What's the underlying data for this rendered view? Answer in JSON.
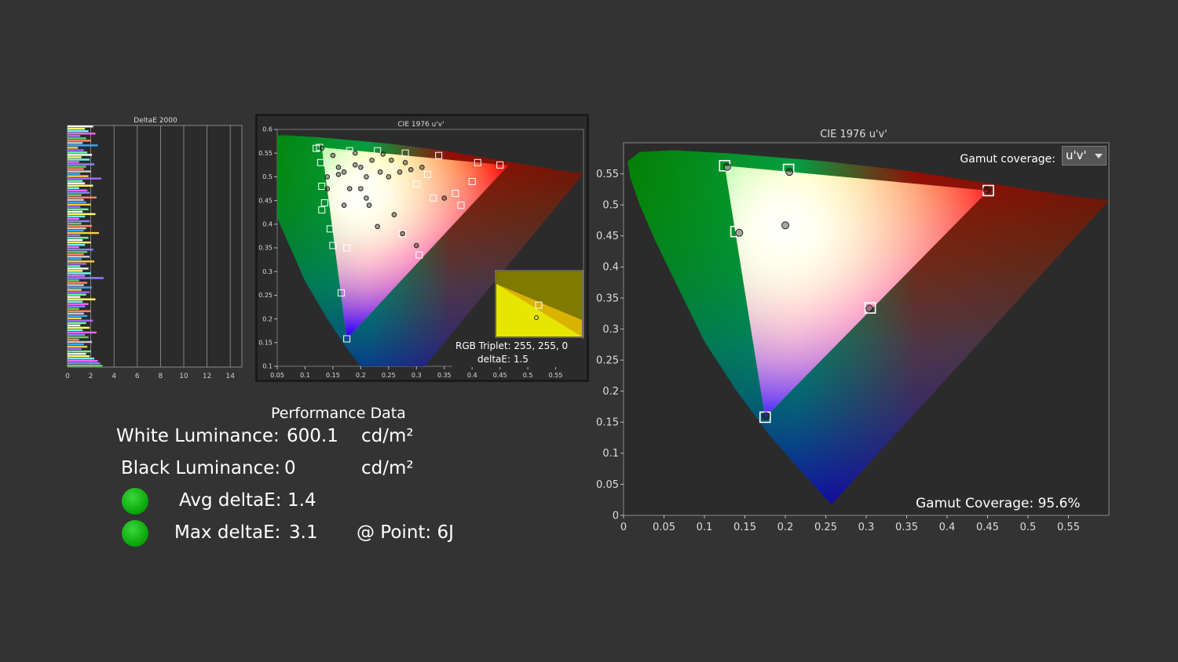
{
  "performance": {
    "title": "Performance Data",
    "white_label": "White Luminance:",
    "white_value": "600.1",
    "white_unit": "cd/m²",
    "black_label": "Black Luminance:",
    "black_value": "0",
    "black_unit": "cd/m²",
    "avg_label": "Avg deltaE:",
    "avg_value": "1.4",
    "max_label": "Max deltaE:",
    "max_value": "3.1",
    "point_label": "@ Point: 6J",
    "status_color": "#1fc21f"
  },
  "colors": {
    "background": "#333333",
    "plot_background": "#2b2b2b"
  },
  "chart_data": [
    {
      "type": "bar",
      "title": "DeltaE 2000",
      "orientation": "horizontal",
      "xlim": [
        0,
        15
      ],
      "x_ticks": [
        "0",
        "2",
        "4",
        "6",
        "8",
        "10",
        "12",
        "14"
      ],
      "values": [
        2.2,
        1.5,
        1.8,
        2.4,
        1.1,
        1.6,
        2.0,
        1.3,
        2.6,
        0.9,
        1.4,
        1.7,
        2.1,
        1.2,
        1.9,
        1.0,
        2.3,
        1.6,
        1.4,
        2.0,
        1.1,
        1.8,
        2.9,
        1.3,
        1.5,
        2.2,
        1.0,
        1.7,
        1.9,
        1.2,
        2.5,
        1.4,
        1.6,
        2.0,
        1.1,
        1.8,
        1.3,
        2.4,
        1.5,
        1.0,
        1.9,
        1.2,
        2.1,
        1.6,
        1.4,
        2.7,
        1.1,
        1.8,
        1.3,
        2.0,
        1.5,
        1.0,
        2.2,
        1.7,
        1.4,
        1.9,
        1.2,
        2.3,
        1.6,
        1.1,
        1.8,
        1.3,
        2.0,
        1.5,
        3.1,
        1.0,
        1.7,
        1.4,
        2.1,
        1.2,
        1.9,
        1.6,
        1.1,
        2.4,
        1.3,
        1.8,
        1.5,
        1.0,
        2.0,
        1.4,
        1.7,
        1.2,
        2.2,
        1.6,
        1.1,
        1.9,
        1.3,
        2.5,
        1.5,
        1.8,
        1.0,
        2.1,
        1.4,
        1.7,
        1.2,
        2.0,
        1.6,
        1.9,
        2.3,
        2.6,
        2.8,
        3.0
      ],
      "colors": [
        "#ffffff",
        "#ffff66",
        "#66ffff",
        "#ff66ff",
        "#8888ff",
        "#66cc66",
        "#ff8866",
        "#cccccc",
        "#33aaff",
        "#ffcc44",
        "#aa66ff",
        "#66ffaa"
      ]
    },
    {
      "type": "scatter",
      "title": "CIE 1976 u'v'",
      "xlim": [
        0.05,
        0.6
      ],
      "ylim": [
        0.1,
        0.6
      ],
      "x_ticks": [
        "0.05",
        "0.1",
        "0.15",
        "0.2",
        "0.25",
        "0.3",
        "0.35",
        "0.4",
        "0.45",
        "0.5",
        "0.55"
      ],
      "y_ticks": [
        "0.1",
        "0.15",
        "0.2",
        "0.25",
        "0.3",
        "0.35",
        "0.4",
        "0.45",
        "0.5",
        "0.55",
        "0.6"
      ],
      "gamut": [
        [
          0.13,
          0.562
        ],
        [
          0.465,
          0.524
        ],
        [
          0.175,
          0.158
        ]
      ],
      "targets": [
        [
          0.126,
          0.562
        ],
        [
          0.18,
          0.555
        ],
        [
          0.23,
          0.555
        ],
        [
          0.28,
          0.55
        ],
        [
          0.34,
          0.545
        ],
        [
          0.41,
          0.53
        ],
        [
          0.45,
          0.525
        ],
        [
          0.128,
          0.53
        ],
        [
          0.15,
          0.505
        ],
        [
          0.2,
          0.51
        ],
        [
          0.26,
          0.52
        ],
        [
          0.32,
          0.505
        ],
        [
          0.4,
          0.49
        ],
        [
          0.13,
          0.48
        ],
        [
          0.17,
          0.47
        ],
        [
          0.22,
          0.49
        ],
        [
          0.3,
          0.485
        ],
        [
          0.37,
          0.465
        ],
        [
          0.135,
          0.445
        ],
        [
          0.18,
          0.44
        ],
        [
          0.25,
          0.455
        ],
        [
          0.33,
          0.455
        ],
        [
          0.38,
          0.44
        ],
        [
          0.145,
          0.39
        ],
        [
          0.225,
          0.4
        ],
        [
          0.275,
          0.38
        ],
        [
          0.15,
          0.355
        ],
        [
          0.175,
          0.35
        ],
        [
          0.305,
          0.335
        ],
        [
          0.165,
          0.255
        ],
        [
          0.175,
          0.158
        ],
        [
          0.2,
          0.472
        ],
        [
          0.16,
          0.44
        ],
        [
          0.13,
          0.43
        ],
        [
          0.12,
          0.56
        ]
      ],
      "measured": [
        [
          0.13,
          0.56
        ],
        [
          0.15,
          0.545
        ],
        [
          0.19,
          0.55
        ],
        [
          0.24,
          0.548
        ],
        [
          0.2,
          0.52
        ],
        [
          0.17,
          0.51
        ],
        [
          0.16,
          0.52
        ],
        [
          0.21,
          0.5
        ],
        [
          0.27,
          0.51
        ],
        [
          0.25,
          0.5
        ],
        [
          0.2,
          0.475
        ],
        [
          0.18,
          0.475
        ],
        [
          0.14,
          0.475
        ],
        [
          0.215,
          0.44
        ],
        [
          0.17,
          0.44
        ],
        [
          0.26,
          0.42
        ],
        [
          0.23,
          0.395
        ],
        [
          0.275,
          0.38
        ],
        [
          0.3,
          0.355
        ],
        [
          0.35,
          0.455
        ],
        [
          0.22,
          0.535
        ],
        [
          0.28,
          0.53
        ],
        [
          0.31,
          0.52
        ],
        [
          0.29,
          0.515
        ],
        [
          0.19,
          0.525
        ],
        [
          0.16,
          0.505
        ],
        [
          0.235,
          0.51
        ],
        [
          0.21,
          0.455
        ],
        [
          0.255,
          0.535
        ],
        [
          0.14,
          0.5
        ]
      ],
      "tooltip": {
        "triplet": "RGB Triplet: 255, 255, 0",
        "deltae": "deltaE: 1.5",
        "target": [
          0.25,
          0.52
        ],
        "measured": [
          0.24,
          0.5
        ]
      }
    },
    {
      "type": "scatter",
      "title": "CIE 1976 u'v'",
      "xlim": [
        0,
        0.6
      ],
      "ylim": [
        0,
        0.6
      ],
      "x_ticks": [
        "0",
        "0.05",
        "0.1",
        "0.15",
        "0.2",
        "0.25",
        "0.3",
        "0.35",
        "0.4",
        "0.45",
        "0.5",
        "0.55"
      ],
      "y_ticks": [
        "0",
        "0.05",
        "0.1",
        "0.15",
        "0.2",
        "0.25",
        "0.3",
        "0.35",
        "0.4",
        "0.45",
        "0.5",
        "0.55"
      ],
      "gamut_coverage_label": "Gamut coverage:",
      "gamut_coverage_option": "u'v'",
      "coverage_text": "Gamut Coverage:  95.6%",
      "gamut": [
        [
          0.125,
          0.563
        ],
        [
          0.451,
          0.523
        ],
        [
          0.175,
          0.158
        ]
      ],
      "targets": [
        {
          "name": "Green",
          "u": 0.125,
          "v": 0.563
        },
        {
          "name": "Yellow",
          "u": 0.204,
          "v": 0.557
        },
        {
          "name": "Red",
          "u": 0.451,
          "v": 0.523
        },
        {
          "name": "Cyan",
          "u": 0.139,
          "v": 0.457
        },
        {
          "name": "White",
          "u": 0.198,
          "v": 0.468
        },
        {
          "name": "Magenta",
          "u": 0.305,
          "v": 0.334
        },
        {
          "name": "Blue",
          "u": 0.175,
          "v": 0.158
        }
      ],
      "measured": [
        {
          "name": "Green",
          "u": 0.128,
          "v": 0.561
        },
        {
          "name": "Yellow",
          "u": 0.205,
          "v": 0.553
        },
        {
          "name": "Red",
          "u": 0.449,
          "v": 0.524
        },
        {
          "name": "Cyan",
          "u": 0.143,
          "v": 0.455
        },
        {
          "name": "White",
          "u": 0.2,
          "v": 0.467
        },
        {
          "name": "Magenta",
          "u": 0.304,
          "v": 0.333
        },
        {
          "name": "Blue",
          "u": 0.176,
          "v": 0.16
        }
      ],
      "locus": [
        [
          0.257,
          0.017
        ],
        [
          0.22,
          0.07
        ],
        [
          0.18,
          0.13
        ],
        [
          0.14,
          0.2
        ],
        [
          0.1,
          0.28
        ],
        [
          0.07,
          0.36
        ],
        [
          0.04,
          0.44
        ],
        [
          0.02,
          0.5
        ],
        [
          0.008,
          0.545
        ],
        [
          0.005,
          0.57
        ],
        [
          0.02,
          0.585
        ],
        [
          0.06,
          0.588
        ],
        [
          0.13,
          0.583
        ],
        [
          0.25,
          0.57
        ],
        [
          0.35,
          0.555
        ],
        [
          0.45,
          0.535
        ],
        [
          0.55,
          0.515
        ],
        [
          0.6,
          0.507
        ]
      ]
    }
  ]
}
